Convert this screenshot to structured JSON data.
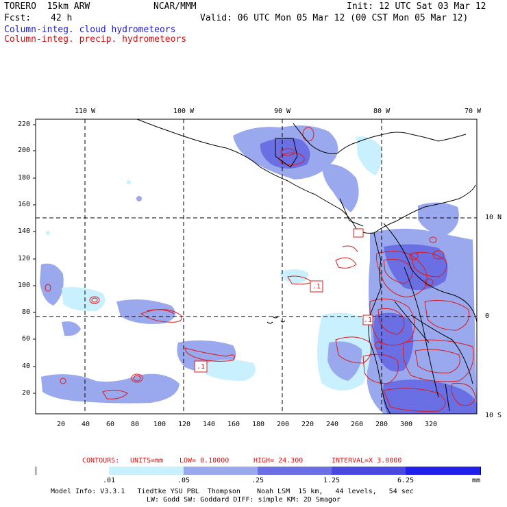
{
  "header": {
    "model": "TORERO  15km ARW",
    "center": "NCAR/MMM",
    "init": "Init: 12 UTC Sat 03 Mar 12",
    "fcst_label": "Fcst:",
    "fcst_value": "42 h",
    "valid": "Valid: 06 UTC Mon 05 Mar 12 (00 CST Mon 05 Mar 12)",
    "legend_cloud": "Column-integ. cloud hydrometeors",
    "legend_precip": "Column-integ. precip. hydrometeors"
  },
  "colors": {
    "cloud_light": "#c8f0ff",
    "cloud_mid": "#9aa8ee",
    "cloud_dark": "#6a70e4",
    "precip": "#e01818",
    "grid": "#000000"
  },
  "axes": {
    "top_lon": [
      "110 W",
      "100 W",
      "90 W",
      "80 W",
      "70 W"
    ],
    "right_lat": [
      "10 N",
      "0",
      "10 S"
    ],
    "y_ticks": [
      "220",
      "200",
      "180",
      "160",
      "140",
      "120",
      "100",
      "80",
      "60",
      "40",
      "20"
    ],
    "x_ticks": [
      "20",
      "40",
      "60",
      "80",
      "100",
      "120",
      "140",
      "160",
      "180",
      "200",
      "220",
      "240",
      "260",
      "280",
      "300",
      "320"
    ]
  },
  "box_labels": [
    ".1",
    ".1",
    ".1"
  ],
  "contours": {
    "label": "CONTOURS:",
    "units": "UNITS=mm",
    "low": "LOW= 0.10000",
    "high": "HIGH= 24.300",
    "interval": "INTERVAL=X 3.0000"
  },
  "colorbar": {
    "labels": [
      ".01",
      ".05",
      ".25",
      "1.25",
      "6.25"
    ],
    "unit": "mm",
    "colors": [
      "#ffffff",
      "#c8f0ff",
      "#9aa8ee",
      "#6a70e4",
      "#4a48de",
      "#2020e8"
    ]
  },
  "footer": {
    "line1": "Model Info: V3.3.1   Tiedtke YSU PBL  Thompson    Noah LSM  15 km,   44 levels,   54 sec",
    "line2": "LW: Godd SW: Goddard DIFF: simple KM: 2D Smagor"
  }
}
